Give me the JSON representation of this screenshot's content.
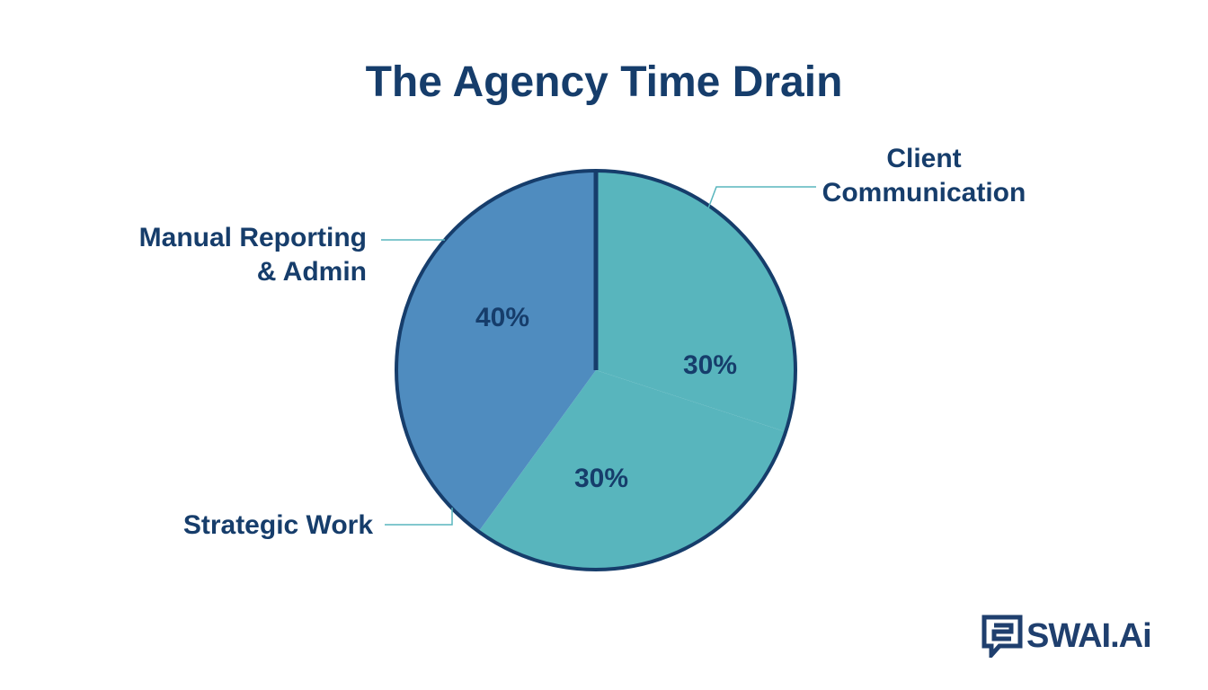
{
  "chart_data": {
    "type": "pie",
    "title": "The Agency Time Drain",
    "slices": [
      {
        "label": "Client Communication",
        "value": 30,
        "value_label": "30%",
        "color": "#58b5bd"
      },
      {
        "label": "Strategic Work",
        "value": 30,
        "value_label": "30%",
        "color": "#58b5bd"
      },
      {
        "label": "Manual Reporting & Admin",
        "value": 40,
        "value_label": "40%",
        "color": "#4f8cbf"
      }
    ],
    "accent_slice_color": "#f0a060",
    "outline_color": "#163d6b",
    "label_color": "#163d6b"
  },
  "logo": {
    "text": "SWAI.Ai",
    "icon": "chat-bubble-logo-icon",
    "color": "#1f3f6e"
  }
}
